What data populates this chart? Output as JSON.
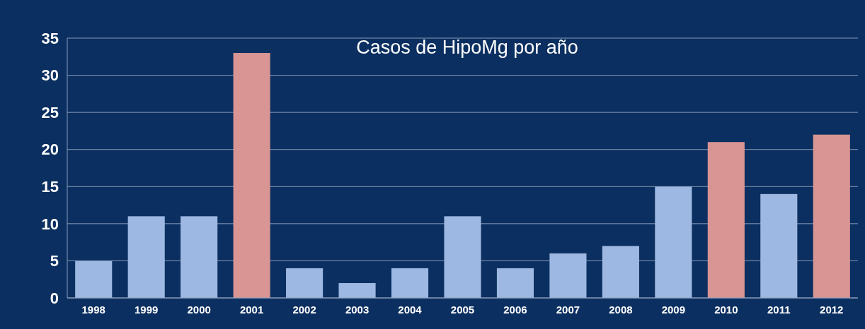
{
  "chart_data": {
    "type": "bar",
    "title": "Casos de HipoMg por año",
    "categories": [
      "1998",
      "1999",
      "2000",
      "2001",
      "2002",
      "2003",
      "2004",
      "2005",
      "2006",
      "2007",
      "2008",
      "2009",
      "2010",
      "2011",
      "2012"
    ],
    "values": [
      5,
      11,
      11,
      33,
      4,
      2,
      4,
      11,
      4,
      6,
      7,
      15,
      21,
      14,
      22
    ],
    "colors": [
      "#9db8e2",
      "#9db8e2",
      "#9db8e2",
      "#d99594",
      "#9db8e2",
      "#9db8e2",
      "#9db8e2",
      "#9db8e2",
      "#9db8e2",
      "#9db8e2",
      "#9db8e2",
      "#9db8e2",
      "#d99594",
      "#9db8e2",
      "#d99594"
    ],
    "ylim": [
      0,
      35
    ],
    "yticks": [
      0,
      5,
      10,
      15,
      20,
      25,
      30,
      35
    ],
    "grid": "y"
  }
}
